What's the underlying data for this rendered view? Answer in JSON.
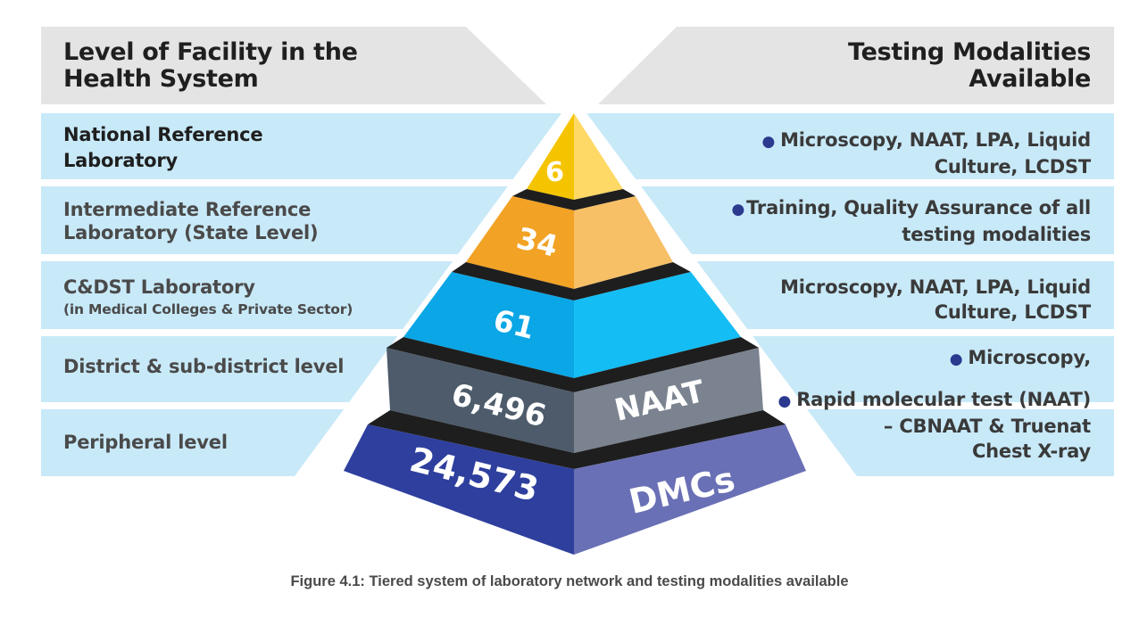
{
  "headers": {
    "left": [
      "Level of Facility in the",
      "Health System"
    ],
    "right": [
      "Testing Modalities",
      "Available"
    ]
  },
  "tiers": [
    {
      "level": [
        "National Reference",
        "Laboratory"
      ],
      "count": "6",
      "side_label": "",
      "modalities": [
        {
          "bullet": true,
          "lines": [
            "Microscopy, NAAT, LPA, Liquid",
            "Culture, LCDST"
          ]
        }
      ],
      "colors": {
        "front": "#f5c400",
        "side": "#ffd966"
      }
    },
    {
      "level": [
        "Intermediate Reference",
        "Laboratory (State Level)"
      ],
      "count": "34",
      "side_label": "",
      "modalities": [
        {
          "bullet": true,
          "lines": [
            "Training, Quality Assurance of all",
            "testing modalities"
          ]
        }
      ],
      "colors": {
        "front": "#f2a224",
        "side": "#f7bf66"
      }
    },
    {
      "level": [
        "C&DST Laboratory",
        "(in Medical Colleges & Private Sector)"
      ],
      "count": "61",
      "side_label": "",
      "modalities": [
        {
          "bullet": false,
          "lines": [
            "Microscopy, NAAT, LPA, Liquid",
            "Culture, LCDST"
          ]
        }
      ],
      "colors": {
        "front": "#0aa6e6",
        "side": "#14bdf3"
      }
    },
    {
      "level": [
        "District & sub-district level"
      ],
      "count": "6,496",
      "side_label": "NAAT",
      "modalities": [
        {
          "bullet": true,
          "lines": [
            "Microscopy,"
          ]
        },
        {
          "bullet": true,
          "lines": [
            "Rapid molecular test (NAAT)",
            "– CBNAAT & Truenat",
            "Chest X-ray"
          ]
        }
      ],
      "colors": {
        "front": "#4d5b6b",
        "side": "#7b8390"
      }
    },
    {
      "level": [
        "Peripheral level"
      ],
      "count": "24,573",
      "side_label": "DMCs",
      "modalities": [],
      "colors": {
        "front": "#2e3f9e",
        "side": "#6a70b5"
      }
    }
  ],
  "caption": "Figure 4.1: Tiered system of laboratory network and testing modalities available",
  "colors": {
    "band": "#c8e9f8",
    "header_band": "#e4e4e4",
    "gap": "#1e1e1e",
    "bullet": "#2b3a8f"
  }
}
